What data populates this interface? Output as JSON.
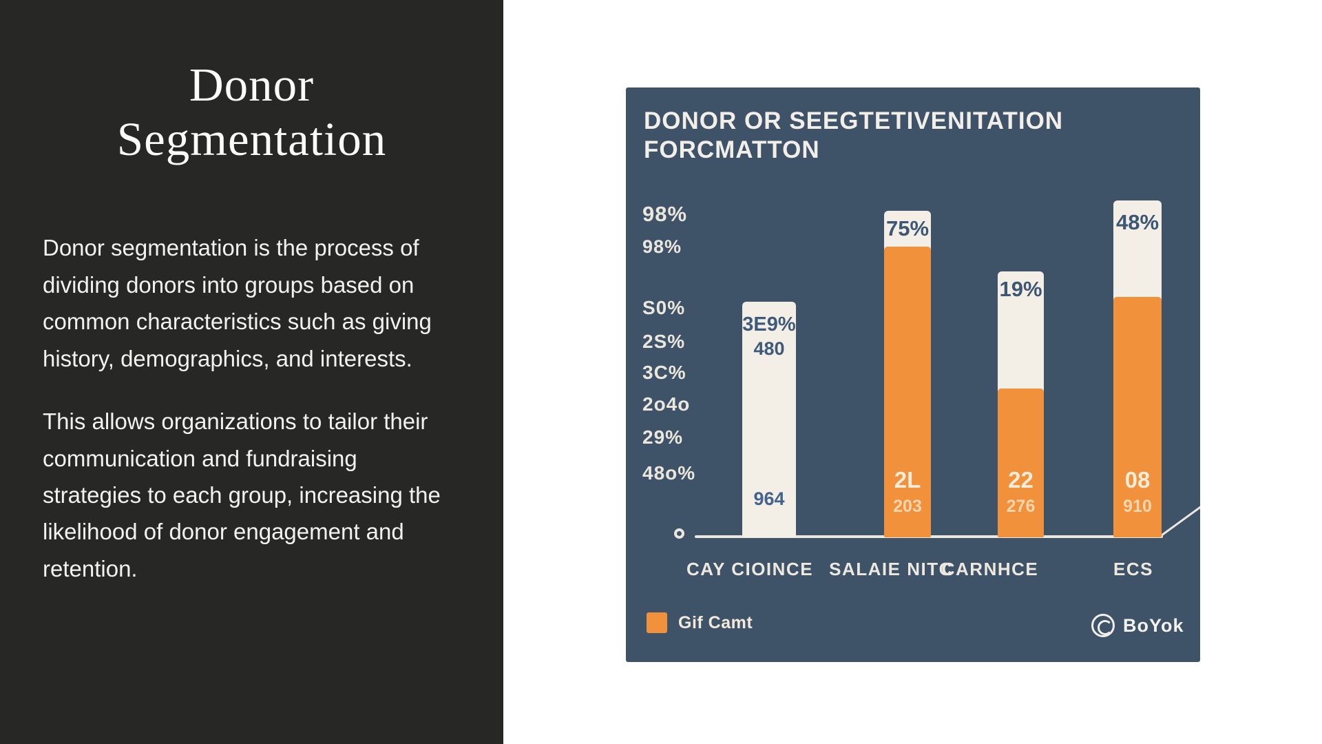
{
  "slide": {
    "title_line1": "Donor",
    "title_line2": "Segmentation",
    "paragraph1": "Donor segmentation is the process of dividing donors into groups based on common characteristics such as giving history, demographics, and interests.",
    "paragraph2": "This allows organizations to tailor their communication and fundraising strategies to each group, increasing the likelihood of donor engagement and retention."
  },
  "chart": {
    "title_line1": "DONOR OR SEEGTETIVENITATION",
    "title_line2": "FORCMATTON",
    "y_labels": [
      "98%",
      "98%",
      "S0%",
      "2S%",
      "3C%",
      "2o4o",
      "29%",
      "48o%"
    ],
    "bars": [
      {
        "label_top": "3E9%",
        "label_top2": "480",
        "label_bottom": "964"
      },
      {
        "cap_label": "75%",
        "mid_label": "2L",
        "low_label": "203"
      },
      {
        "cap_label": "19%",
        "mid_label": "22",
        "low_label": "276"
      },
      {
        "cap_label": "48%",
        "mid_label": "08",
        "low_label": "910"
      }
    ],
    "x_labels": [
      "CAY CIOINCE",
      "SALAIE NITC",
      "CARNHCE",
      "ECS"
    ],
    "legend": {
      "label": "Gif Camt",
      "color": "#f2913c"
    },
    "logo_text": "BoYok",
    "colors": {
      "background": "#3e5268",
      "bar_white": "#f3efe7",
      "bar_orange": "#f2913c"
    }
  },
  "chart_data": {
    "type": "bar",
    "title": "DONOR OR SEEGTETIVENITATION FORCMATTON",
    "categories": [
      "CAY CIOINCE",
      "SALAIE NITC",
      "CARNHCE",
      "ECS"
    ],
    "series": [
      {
        "name": "white-bar-height-pct",
        "values": [
          68,
          94,
          77,
          97
        ]
      },
      {
        "name": "Gif Camt (orange) height-pct",
        "values": [
          0,
          84,
          43,
          69
        ]
      }
    ],
    "bar_value_labels": [
      [
        "3E9%",
        "480",
        "964"
      ],
      [
        "75%",
        "2L",
        "203"
      ],
      [
        "19%",
        "22",
        "276"
      ],
      [
        "48%",
        "08",
        "910"
      ]
    ],
    "y_tick_labels": [
      "98%",
      "98%",
      "S0%",
      "2S%",
      "3C%",
      "2o4o",
      "29%",
      "48o%"
    ],
    "legend_entries": [
      "Gif Camt"
    ],
    "legend_position": "bottom-left",
    "grid": false
  }
}
